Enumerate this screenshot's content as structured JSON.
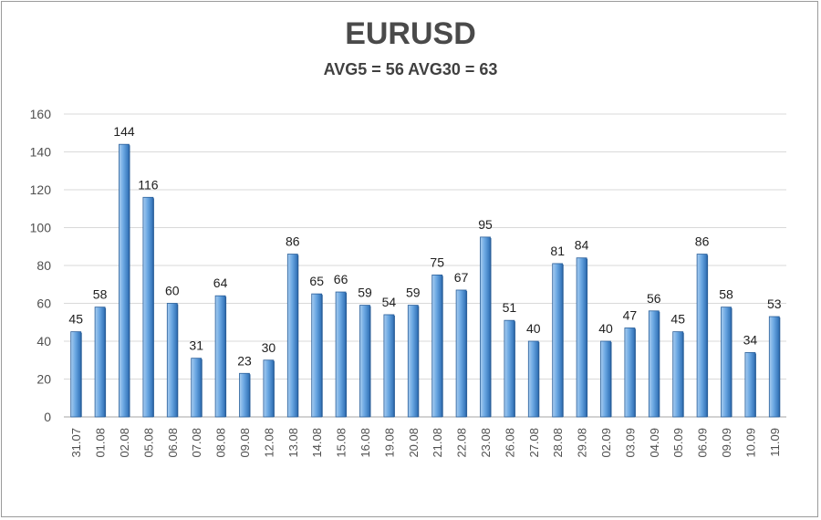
{
  "chart_data": {
    "type": "bar",
    "title": "EURUSD",
    "subtitle": "AVG5 = 56 AVG30 = 63",
    "xlabel": "",
    "ylabel": "",
    "ylim": [
      0,
      160
    ],
    "yticks": [
      0,
      20,
      40,
      60,
      80,
      100,
      120,
      140,
      160
    ],
    "grid": true,
    "legend": "none",
    "categories": [
      "31.07",
      "01.08",
      "02.08",
      "05.08",
      "06.08",
      "07.08",
      "08.08",
      "09.08",
      "12.08",
      "13.08",
      "14.08",
      "15.08",
      "16.08",
      "19.08",
      "20.08",
      "21.08",
      "22.08",
      "23.08",
      "26.08",
      "27.08",
      "28.08",
      "29.08",
      "02.09",
      "03.09",
      "04.09",
      "05.09",
      "06.09",
      "09.09",
      "10.09",
      "11.09"
    ],
    "values": [
      45,
      58,
      144,
      116,
      60,
      31,
      64,
      23,
      30,
      86,
      65,
      66,
      59,
      54,
      59,
      75,
      67,
      95,
      51,
      40,
      81,
      84,
      40,
      47,
      56,
      45,
      86,
      58,
      34,
      53
    ],
    "colors": {
      "bar_light": "#a9cdf0",
      "bar_mid": "#6aa7e2",
      "bar_dark": "#2f6fb5",
      "bar_edge": "#2a5f9a",
      "grid": "#d9d9d9",
      "axis": "#a6a6a6"
    }
  }
}
